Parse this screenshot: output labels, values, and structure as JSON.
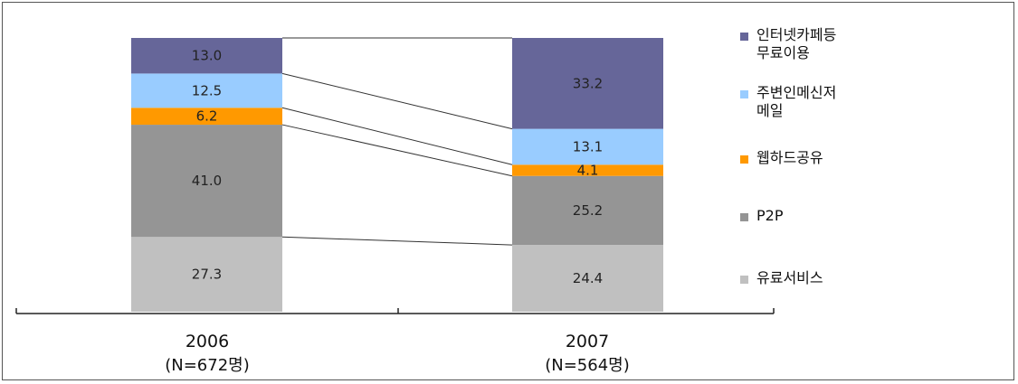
{
  "chart_data": {
    "type": "bar",
    "stacked": true,
    "categories": [
      "2006",
      "2007"
    ],
    "category_sublabels": [
      "(N=672명)",
      "(N=564명)"
    ],
    "series": [
      {
        "name": "유료서비스",
        "values": [
          27.3,
          24.4
        ],
        "color": "#c0c0c0"
      },
      {
        "name": "P2P",
        "values": [
          41.0,
          25.2
        ],
        "color": "#959595"
      },
      {
        "name": "웹하드공유",
        "values": [
          6.2,
          4.1
        ],
        "color": "#ff9900"
      },
      {
        "name": "주변인메신저\n메일",
        "values": [
          12.5,
          13.1
        ],
        "color": "#99ccff"
      },
      {
        "name": "인터넷카페등\n무료이용",
        "values": [
          13.0,
          33.2
        ],
        "color": "#666699"
      }
    ],
    "value_labels": [
      [
        "27.3",
        "24.4"
      ],
      [
        "41.0",
        "25.2"
      ],
      [
        "6.2",
        "4.1"
      ],
      [
        "12.5",
        "13.1"
      ],
      [
        "13.0",
        "33.2"
      ]
    ],
    "legend_order": [
      4,
      3,
      2,
      1,
      0
    ],
    "legend_position": "right",
    "connector_lines": true,
    "grid": false,
    "title": "",
    "xlabel": "",
    "ylabel": ""
  }
}
